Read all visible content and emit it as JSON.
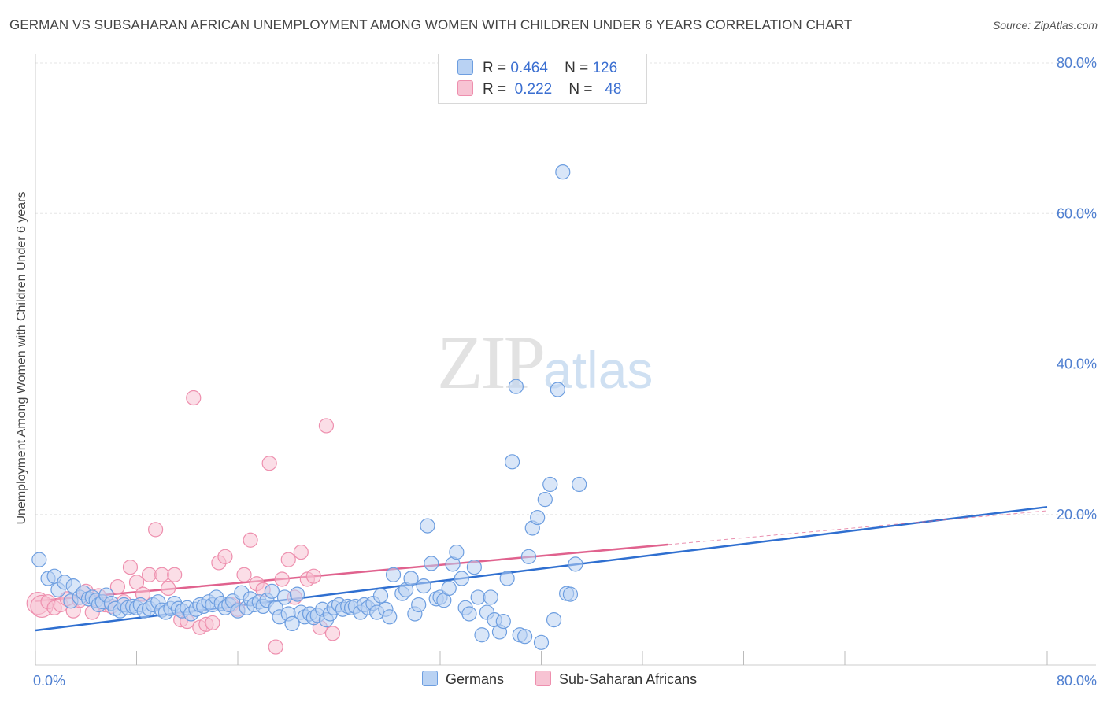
{
  "header": {
    "title": "GERMAN VS SUBSAHARAN AFRICAN UNEMPLOYMENT AMONG WOMEN WITH CHILDREN UNDER 6 YEARS CORRELATION CHART",
    "source": "Source: ZipAtlas.com"
  },
  "watermark": {
    "zip": "ZIP",
    "atlas": "atlas"
  },
  "legend": {
    "germans": {
      "r_label": "R =",
      "r_value": "0.464",
      "n_label": "N =",
      "n_value": "126"
    },
    "africans": {
      "r_label": "R =",
      "r_value": "0.222",
      "n_label": "N =",
      "n_value": "48"
    }
  },
  "bottom_legend": {
    "germans": "Germans",
    "africans": "Sub-Saharan Africans"
  },
  "colors": {
    "germans_fill": "#b9d2f3",
    "germans_stroke": "#6d9ee0",
    "germans_line": "#2f6fd0",
    "africans_fill": "#f7c3d3",
    "africans_stroke": "#ee8fae",
    "africans_line": "#e0628e"
  },
  "chart_data": {
    "type": "scatter",
    "title": "GERMAN VS SUBSAHARAN AFRICAN UNEMPLOYMENT AMONG WOMEN WITH CHILDREN UNDER 6 YEARS CORRELATION CHART",
    "xlabel": "",
    "ylabel": "Unemployment Among Women with Children Under 6 years",
    "xlim": [
      0,
      80
    ],
    "ylim": [
      0,
      80
    ],
    "x_tick_labels": [
      "0.0%",
      "80.0%"
    ],
    "y_tick_labels": [
      "20.0%",
      "40.0%",
      "60.0%",
      "80.0%"
    ],
    "y_ticks": [
      20,
      40,
      60,
      80
    ],
    "grid": true,
    "legend_position": "top-center",
    "series": [
      {
        "name": "Germans",
        "r": 0.464,
        "n": 126,
        "trend": {
          "x": [
            0,
            80
          ],
          "y": [
            4.6,
            21.0
          ]
        },
        "points": [
          [
            0.3,
            14.0
          ],
          [
            1.0,
            11.5
          ],
          [
            1.5,
            11.8
          ],
          [
            1.8,
            10.0
          ],
          [
            2.3,
            11.0
          ],
          [
            2.8,
            8.5
          ],
          [
            3.0,
            10.5
          ],
          [
            3.5,
            9.0
          ],
          [
            3.8,
            9.6
          ],
          [
            4.2,
            8.8
          ],
          [
            4.5,
            9.0
          ],
          [
            4.8,
            8.6
          ],
          [
            5.0,
            8.0
          ],
          [
            5.3,
            8.4
          ],
          [
            5.6,
            9.3
          ],
          [
            6.0,
            8.2
          ],
          [
            6.3,
            7.5
          ],
          [
            6.7,
            7.2
          ],
          [
            7.0,
            8.0
          ],
          [
            7.3,
            7.6
          ],
          [
            7.7,
            7.8
          ],
          [
            8.0,
            7.6
          ],
          [
            8.3,
            8.0
          ],
          [
            8.6,
            7.2
          ],
          [
            9.0,
            7.5
          ],
          [
            9.3,
            8.0
          ],
          [
            9.7,
            8.4
          ],
          [
            10.0,
            7.3
          ],
          [
            10.3,
            7.0
          ],
          [
            10.7,
            7.5
          ],
          [
            11.0,
            8.2
          ],
          [
            11.3,
            7.5
          ],
          [
            11.6,
            7.2
          ],
          [
            12.0,
            7.6
          ],
          [
            12.3,
            6.8
          ],
          [
            12.7,
            7.4
          ],
          [
            13.0,
            8.0
          ],
          [
            13.3,
            7.8
          ],
          [
            13.7,
            8.4
          ],
          [
            14.0,
            8.0
          ],
          [
            14.3,
            9.0
          ],
          [
            14.7,
            8.2
          ],
          [
            15.0,
            7.6
          ],
          [
            15.3,
            8.0
          ],
          [
            15.6,
            8.5
          ],
          [
            16.0,
            7.2
          ],
          [
            16.3,
            9.6
          ],
          [
            16.7,
            7.6
          ],
          [
            17.0,
            8.8
          ],
          [
            17.3,
            8.0
          ],
          [
            17.7,
            8.4
          ],
          [
            18.0,
            7.8
          ],
          [
            18.3,
            8.6
          ],
          [
            18.7,
            9.8
          ],
          [
            19.0,
            7.6
          ],
          [
            19.3,
            6.4
          ],
          [
            19.7,
            9.0
          ],
          [
            20.0,
            6.8
          ],
          [
            20.3,
            5.5
          ],
          [
            20.7,
            9.4
          ],
          [
            21.0,
            7.0
          ],
          [
            21.3,
            6.4
          ],
          [
            21.7,
            6.8
          ],
          [
            22.0,
            6.3
          ],
          [
            22.3,
            6.6
          ],
          [
            22.7,
            7.4
          ],
          [
            23.0,
            6.0
          ],
          [
            23.3,
            6.8
          ],
          [
            23.6,
            7.6
          ],
          [
            24.0,
            8.0
          ],
          [
            24.3,
            7.4
          ],
          [
            24.7,
            7.8
          ],
          [
            25.0,
            7.6
          ],
          [
            25.3,
            7.8
          ],
          [
            25.7,
            7.0
          ],
          [
            26.0,
            8.0
          ],
          [
            26.3,
            7.6
          ],
          [
            26.7,
            8.2
          ],
          [
            27.0,
            7.0
          ],
          [
            27.3,
            9.2
          ],
          [
            27.7,
            7.4
          ],
          [
            28.0,
            6.4
          ],
          [
            28.3,
            12.0
          ],
          [
            29.0,
            9.5
          ],
          [
            29.3,
            10.0
          ],
          [
            29.7,
            11.5
          ],
          [
            30.0,
            6.8
          ],
          [
            30.3,
            8.0
          ],
          [
            30.7,
            10.5
          ],
          [
            31.0,
            18.5
          ],
          [
            31.3,
            13.5
          ],
          [
            31.7,
            8.8
          ],
          [
            32.0,
            9.0
          ],
          [
            32.3,
            8.6
          ],
          [
            32.7,
            10.2
          ],
          [
            33.0,
            13.4
          ],
          [
            33.3,
            15.0
          ],
          [
            33.7,
            11.5
          ],
          [
            34.0,
            7.6
          ],
          [
            34.3,
            6.8
          ],
          [
            34.7,
            13.0
          ],
          [
            35.0,
            9.0
          ],
          [
            35.3,
            4.0
          ],
          [
            35.7,
            7.0
          ],
          [
            36.0,
            9.0
          ],
          [
            36.3,
            6.0
          ],
          [
            36.7,
            4.4
          ],
          [
            37.0,
            5.8
          ],
          [
            37.3,
            11.5
          ],
          [
            37.7,
            27.0
          ],
          [
            38.0,
            37.0
          ],
          [
            38.3,
            4.0
          ],
          [
            38.7,
            3.8
          ],
          [
            39.0,
            14.4
          ],
          [
            39.3,
            18.2
          ],
          [
            39.7,
            19.6
          ],
          [
            40.0,
            3.0
          ],
          [
            40.3,
            22.0
          ],
          [
            40.7,
            24.0
          ],
          [
            41.0,
            6.0
          ],
          [
            41.3,
            36.6
          ],
          [
            41.7,
            65.5
          ],
          [
            42.0,
            9.5
          ],
          [
            42.3,
            9.4
          ],
          [
            42.7,
            13.4
          ],
          [
            43.0,
            24.0
          ]
        ]
      },
      {
        "name": "Sub-Saharan Africans",
        "r": 0.222,
        "n": 48,
        "trend": {
          "x": [
            0,
            50
          ],
          "y": [
            8.5,
            16.0
          ]
        },
        "points": [
          [
            0.2,
            8.2
          ],
          [
            0.5,
            7.8
          ],
          [
            1.0,
            8.4
          ],
          [
            1.5,
            7.6
          ],
          [
            2.0,
            8.0
          ],
          [
            2.5,
            8.8
          ],
          [
            3.0,
            7.2
          ],
          [
            3.5,
            8.6
          ],
          [
            4.0,
            9.8
          ],
          [
            4.5,
            7.0
          ],
          [
            5.0,
            9.2
          ],
          [
            5.5,
            8.0
          ],
          [
            6.0,
            7.8
          ],
          [
            6.5,
            10.4
          ],
          [
            7.0,
            8.4
          ],
          [
            7.5,
            13.0
          ],
          [
            8.0,
            11.0
          ],
          [
            8.5,
            9.4
          ],
          [
            9.0,
            12.0
          ],
          [
            9.5,
            18.0
          ],
          [
            10.0,
            12.0
          ],
          [
            10.5,
            10.2
          ],
          [
            11.0,
            12.0
          ],
          [
            11.5,
            6.0
          ],
          [
            12.0,
            5.8
          ],
          [
            12.5,
            35.5
          ],
          [
            13.0,
            5.0
          ],
          [
            13.5,
            5.4
          ],
          [
            14.0,
            5.6
          ],
          [
            14.5,
            13.6
          ],
          [
            15.0,
            14.4
          ],
          [
            15.5,
            8.0
          ],
          [
            16.0,
            7.4
          ],
          [
            16.5,
            12.0
          ],
          [
            17.0,
            16.6
          ],
          [
            17.5,
            10.8
          ],
          [
            18.0,
            10.0
          ],
          [
            18.5,
            26.8
          ],
          [
            19.0,
            2.4
          ],
          [
            19.5,
            11.4
          ],
          [
            20.0,
            14.0
          ],
          [
            20.5,
            9.0
          ],
          [
            21.0,
            15.0
          ],
          [
            21.5,
            11.4
          ],
          [
            22.0,
            11.8
          ],
          [
            22.5,
            5.0
          ],
          [
            23.0,
            31.8
          ],
          [
            23.5,
            4.2
          ]
        ]
      }
    ]
  }
}
